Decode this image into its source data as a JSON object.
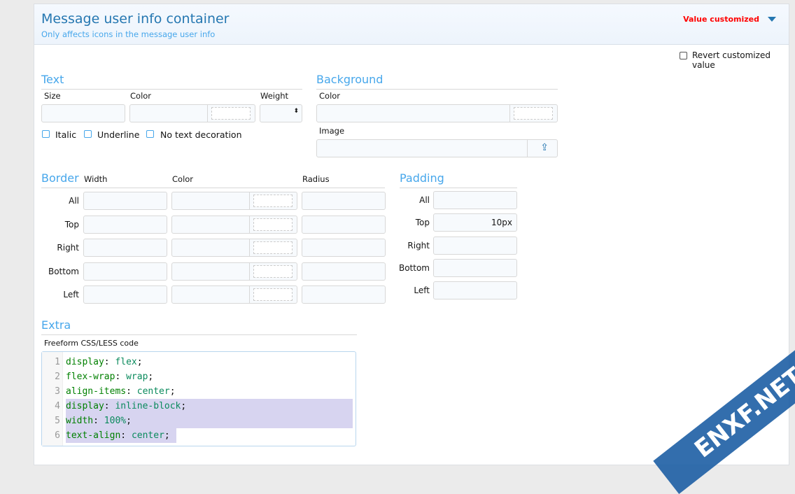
{
  "header": {
    "title": "Message user info container",
    "subtitle": "Only affects icons in the message user info",
    "status": "Value customized"
  },
  "revert_label": "Revert customized value",
  "text": {
    "heading": "Text",
    "size_label": "Size",
    "color_label": "Color",
    "weight_label": "Weight",
    "size_value": "",
    "color_value": "",
    "italic": "Italic",
    "underline": "Underline",
    "no_decoration": "No text decoration"
  },
  "background": {
    "heading": "Background",
    "color_label": "Color",
    "image_label": "Image",
    "color_value": "",
    "image_value": ""
  },
  "border": {
    "heading": "Border",
    "width_label": "Width",
    "color_label": "Color",
    "radius_label": "Radius",
    "rows": [
      "All",
      "Top",
      "Right",
      "Bottom",
      "Left"
    ]
  },
  "padding": {
    "heading": "Padding",
    "rows": [
      {
        "label": "All",
        "value": ""
      },
      {
        "label": "Top",
        "value": "10px"
      },
      {
        "label": "Right",
        "value": ""
      },
      {
        "label": "Bottom",
        "value": ""
      },
      {
        "label": "Left",
        "value": ""
      }
    ]
  },
  "extra": {
    "heading": "Extra",
    "code_label": "Freeform CSS/LESS code",
    "lines": [
      {
        "n": "1",
        "prop": "display",
        "val": "flex"
      },
      {
        "n": "2",
        "prop": "flex-wrap",
        "val": "wrap"
      },
      {
        "n": "3",
        "prop": "align-items",
        "val": "center"
      },
      {
        "n": "4",
        "prop": "display",
        "val": "inline-block"
      },
      {
        "n": "5",
        "prop": "width",
        "val": "100%"
      },
      {
        "n": "6",
        "prop": "text-align",
        "val": "center"
      }
    ]
  },
  "watermark": "ENXF.NET",
  "colors": {
    "accent": "#47a7eb",
    "title": "#2577b1",
    "customized": "#ff0000",
    "selection": "#d7d4f0"
  }
}
